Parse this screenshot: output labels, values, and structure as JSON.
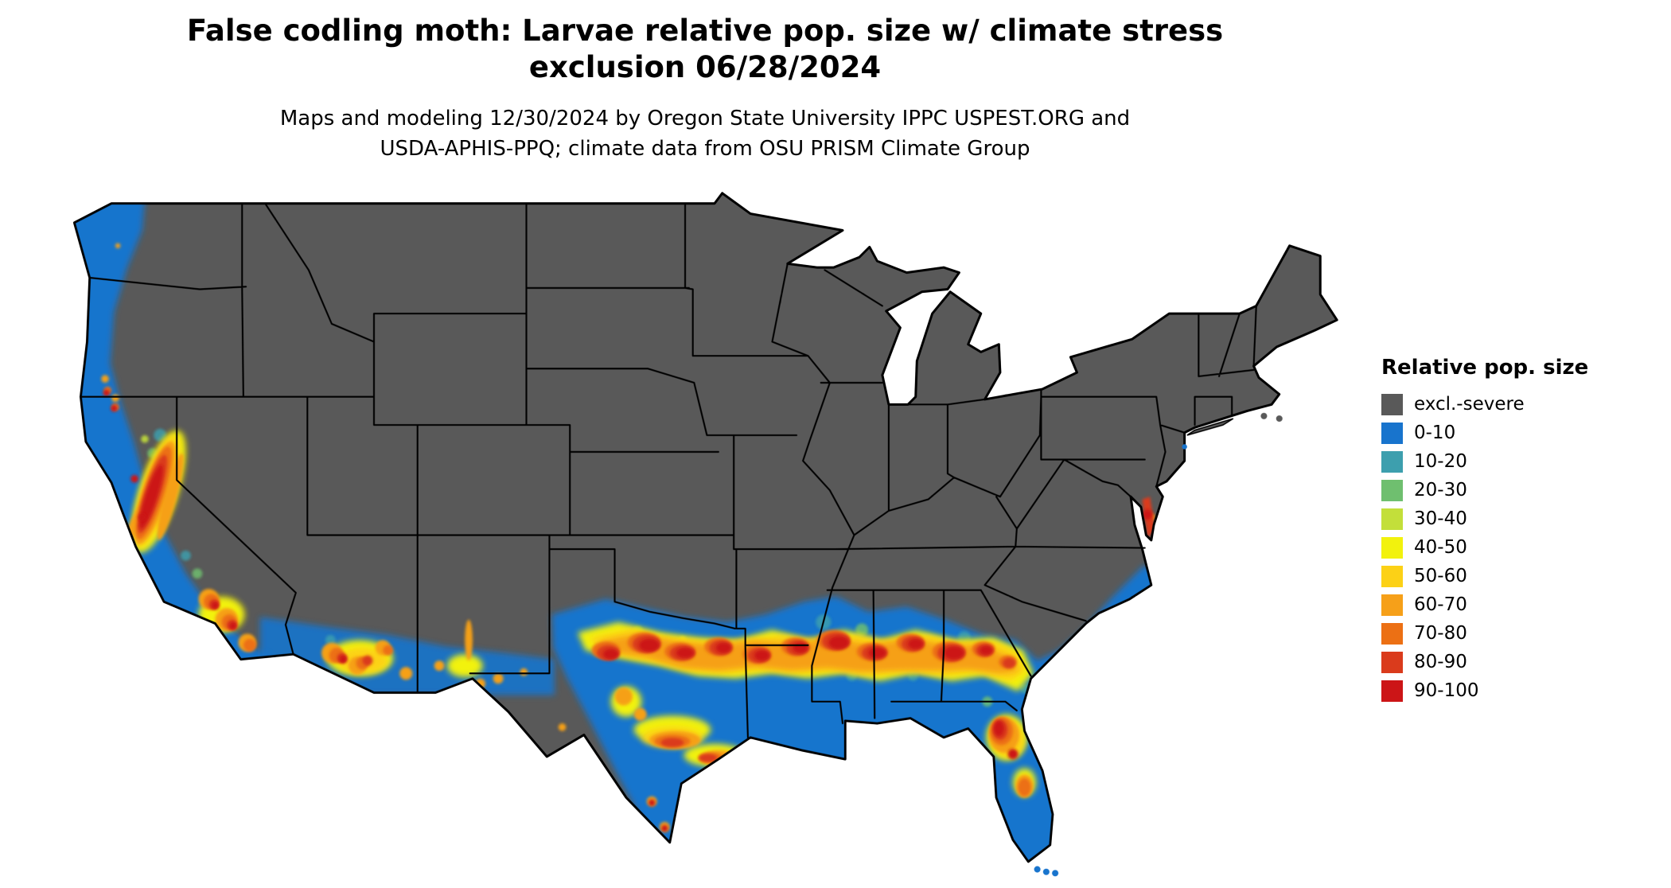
{
  "header": {
    "title_line1": "False codling moth: Larvae relative pop. size w/ climate stress",
    "title_line2": "exclusion 06/28/2024",
    "subtitle_line1": "Maps and modeling 12/30/2024 by Oregon State University IPPC USPEST.ORG and",
    "subtitle_line2": "USDA-APHIS-PPQ; climate data from OSU PRISM Climate Group"
  },
  "legend": {
    "title": "Relative pop. size",
    "items": [
      {
        "key": "excl",
        "label": "excl.-severe",
        "color": "#595959"
      },
      {
        "key": "b0",
        "label": "0-10",
        "color": "#1874CD"
      },
      {
        "key": "b10",
        "label": "10-20",
        "color": "#3D9FAE"
      },
      {
        "key": "b20",
        "label": "20-30",
        "color": "#6FBF6F"
      },
      {
        "key": "b30",
        "label": "30-40",
        "color": "#C3DF3A"
      },
      {
        "key": "b40",
        "label": "40-50",
        "color": "#F2F20D"
      },
      {
        "key": "b50",
        "label": "50-60",
        "color": "#FCD116"
      },
      {
        "key": "b60",
        "label": "60-70",
        "color": "#F6A019"
      },
      {
        "key": "b70",
        "label": "70-80",
        "color": "#EC7014"
      },
      {
        "key": "b80",
        "label": "80-90",
        "color": "#DA3B1C"
      },
      {
        "key": "b90",
        "label": "90-100",
        "color": "#CC1517"
      }
    ]
  }
}
